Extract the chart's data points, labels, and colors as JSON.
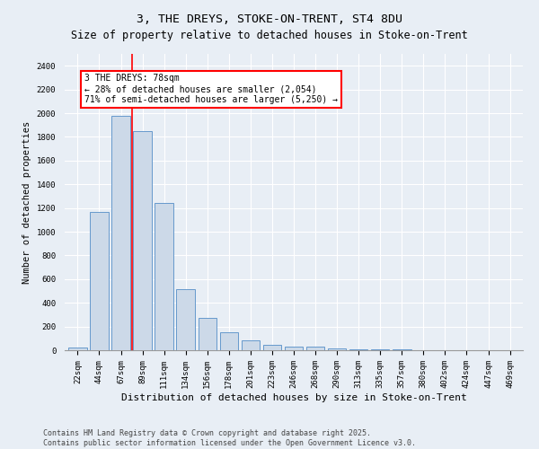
{
  "title": "3, THE DREYS, STOKE-ON-TRENT, ST4 8DU",
  "subtitle": "Size of property relative to detached houses in Stoke-on-Trent",
  "xlabel": "Distribution of detached houses by size in Stoke-on-Trent",
  "ylabel": "Number of detached properties",
  "categories": [
    "22sqm",
    "44sqm",
    "67sqm",
    "89sqm",
    "111sqm",
    "134sqm",
    "156sqm",
    "178sqm",
    "201sqm",
    "223sqm",
    "246sqm",
    "268sqm",
    "290sqm",
    "313sqm",
    "335sqm",
    "357sqm",
    "380sqm",
    "402sqm",
    "424sqm",
    "447sqm",
    "469sqm"
  ],
  "values": [
    25,
    1170,
    1980,
    1850,
    1245,
    515,
    270,
    155,
    85,
    45,
    30,
    28,
    12,
    8,
    5,
    4,
    3,
    2,
    2,
    2,
    2
  ],
  "bar_color": "#ccd9e8",
  "bar_edge_color": "#6699cc",
  "redline_index": 2,
  "annotation_title": "3 THE DREYS: 78sqm",
  "annotation_line1": "← 28% of detached houses are smaller (2,054)",
  "annotation_line2": "71% of semi-detached houses are larger (5,250) →",
  "ylim": [
    0,
    2500
  ],
  "yticks": [
    0,
    200,
    400,
    600,
    800,
    1000,
    1200,
    1400,
    1600,
    1800,
    2000,
    2200,
    2400
  ],
  "footer_line1": "Contains HM Land Registry data © Crown copyright and database right 2025.",
  "footer_line2": "Contains public sector information licensed under the Open Government Licence v3.0.",
  "background_color": "#e8eef5",
  "plot_bg_color": "#e8eef5",
  "grid_color": "#ffffff",
  "title_fontsize": 9.5,
  "subtitle_fontsize": 8.5,
  "axis_label_fontsize": 8,
  "tick_fontsize": 6.5,
  "footer_fontsize": 6,
  "annotation_fontsize": 7,
  "ylabel_fontsize": 7.5
}
